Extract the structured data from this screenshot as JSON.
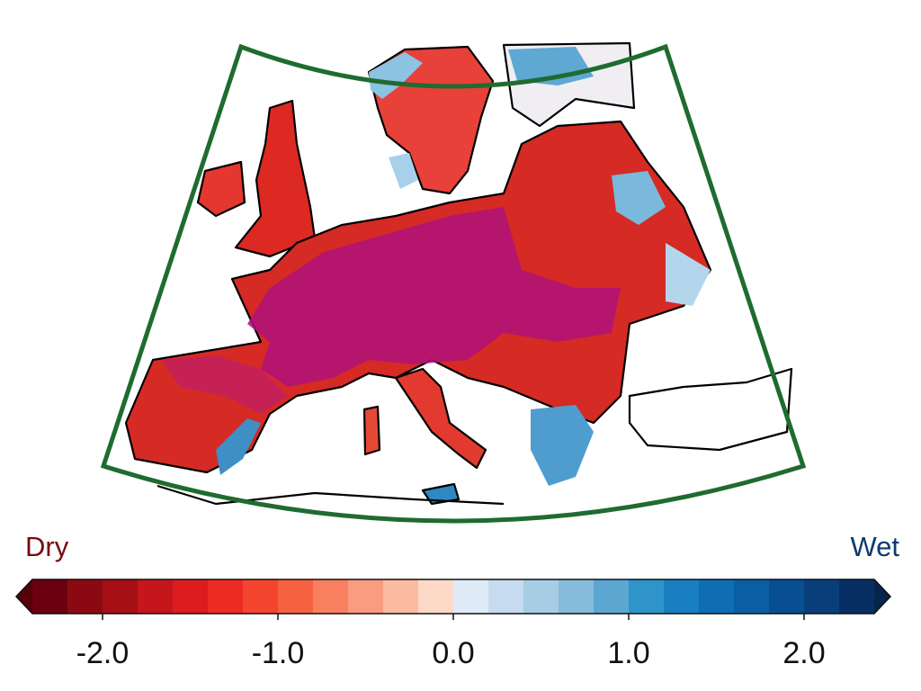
{
  "legend": {
    "left_label": "Dry",
    "right_label": "Wet"
  },
  "colorbar": {
    "range": [
      -2.4,
      2.4
    ],
    "colors": [
      "#6b0010",
      "#8b0a12",
      "#a50f15",
      "#c4161b",
      "#dc1c1f",
      "#ee2a24",
      "#f4452f",
      "#f6623f",
      "#f88060",
      "#fa9c80",
      "#fcbba1",
      "#fddac8",
      "#deebf7",
      "#c6dbef",
      "#a6cde4",
      "#85bcdb",
      "#5ca6d2",
      "#2f94ca",
      "#1a7fc0",
      "#0f6db3",
      "#0a5ea3",
      "#084f91",
      "#083f7a",
      "#082f63"
    ],
    "extend": "both",
    "under_color": "#57000a",
    "over_color": "#07244c",
    "ticks": [
      {
        "value": -2,
        "label": "-2.0"
      },
      {
        "value": -1,
        "label": "-1.0"
      },
      {
        "value": 0,
        "label": "0.0"
      },
      {
        "value": 1,
        "label": "1.0"
      },
      {
        "value": 2,
        "label": "2.0"
      }
    ]
  }
}
